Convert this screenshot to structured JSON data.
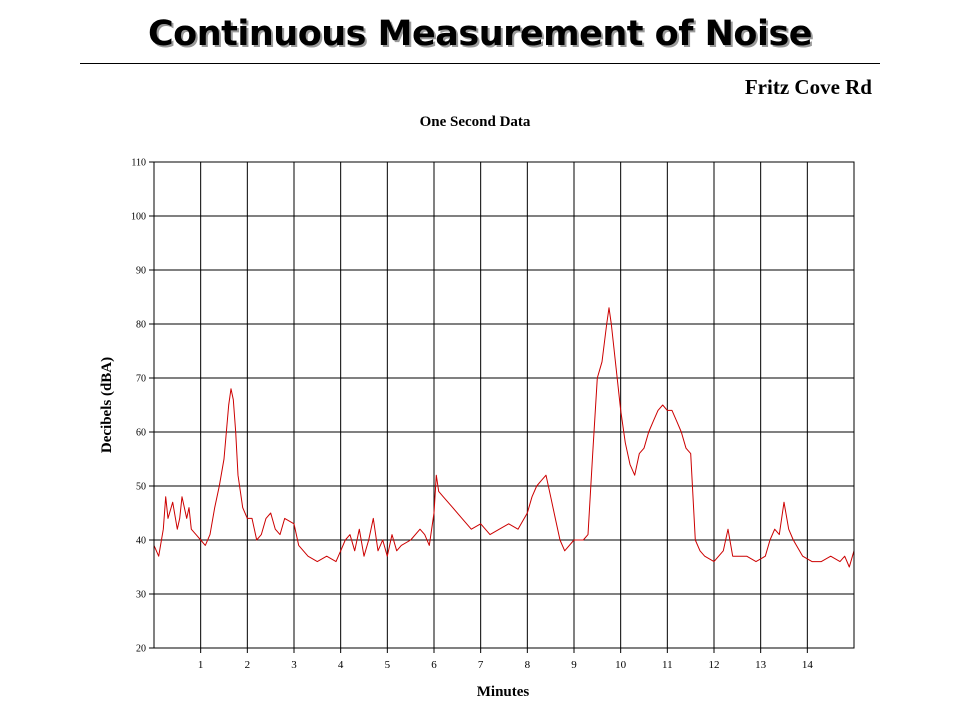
{
  "slide": {
    "title": "Continuous Measurement of Noise",
    "location": "Fritz Cove Rd"
  },
  "colors": {
    "line": "#cc0000",
    "grid": "#000000",
    "text": "#000000"
  },
  "chart_data": {
    "type": "line",
    "title": "One Second Data",
    "xlabel": "Minutes",
    "ylabel": "Decibels (dBA)",
    "xlim": [
      0,
      15
    ],
    "ylim": [
      20,
      110
    ],
    "xticks": [
      1,
      2,
      3,
      4,
      5,
      6,
      7,
      8,
      9,
      10,
      11,
      12,
      13,
      14
    ],
    "yticks": [
      20,
      30,
      40,
      50,
      60,
      70,
      80,
      90,
      100,
      110
    ],
    "grid": true,
    "legend": "none",
    "series": [
      {
        "x": [
          0,
          0.1,
          0.2,
          0.25,
          0.3,
          0.4,
          0.5,
          0.55,
          0.6,
          0.7,
          0.75,
          0.8,
          0.9,
          1.0,
          1.1,
          1.2,
          1.3,
          1.4,
          1.5,
          1.6,
          1.65,
          1.7,
          1.75,
          1.8,
          1.9,
          2.0,
          2.1,
          2.2,
          2.3,
          2.4,
          2.5,
          2.6,
          2.7,
          2.8,
          3.0,
          3.1,
          3.3,
          3.5,
          3.7,
          3.9,
          4.0,
          4.1,
          4.2,
          4.3,
          4.4,
          4.5,
          4.6,
          4.7,
          4.8,
          4.9,
          5.0,
          5.1,
          5.2,
          5.3,
          5.5,
          5.7,
          5.8,
          5.9,
          6.0,
          6.05,
          6.1,
          6.2,
          6.4,
          6.6,
          6.8,
          7.0,
          7.2,
          7.4,
          7.6,
          7.8,
          8.0,
          8.1,
          8.2,
          8.3,
          8.4,
          8.5,
          8.6,
          8.7,
          8.8,
          9.0,
          9.2,
          9.3,
          9.4,
          9.5,
          9.6,
          9.7,
          9.75,
          9.8,
          9.9,
          10.0,
          10.1,
          10.2,
          10.3,
          10.4,
          10.5,
          10.6,
          10.7,
          10.8,
          10.9,
          11.0,
          11.1,
          11.2,
          11.3,
          11.4,
          11.5,
          11.6,
          11.7,
          11.8,
          12.0,
          12.2,
          12.3,
          12.4,
          12.5,
          12.7,
          12.9,
          13.1,
          13.2,
          13.3,
          13.4,
          13.5,
          13.6,
          13.7,
          13.9,
          14.1,
          14.3,
          14.5,
          14.7,
          14.8,
          14.9,
          15.0
        ],
        "values": [
          39,
          37,
          42,
          48,
          44,
          47,
          42,
          44,
          48,
          44,
          46,
          42,
          41,
          40,
          39,
          41,
          46,
          50,
          55,
          65,
          68,
          66,
          60,
          52,
          46,
          44,
          44,
          40,
          41,
          44,
          45,
          42,
          41,
          44,
          43,
          39,
          37,
          36,
          37,
          36,
          38,
          40,
          41,
          38,
          42,
          37,
          40,
          44,
          38,
          40,
          37,
          41,
          38,
          39,
          40,
          42,
          41,
          39,
          45,
          52,
          49,
          48,
          46,
          44,
          42,
          43,
          41,
          42,
          43,
          42,
          45,
          48,
          50,
          51,
          52,
          48,
          44,
          40,
          38,
          40,
          40,
          41,
          56,
          70,
          73,
          80,
          83,
          80,
          72,
          64,
          58,
          54,
          52,
          56,
          57,
          60,
          62,
          64,
          65,
          64,
          64,
          62,
          60,
          57,
          56,
          40,
          38,
          37,
          36,
          38,
          42,
          37,
          37,
          37,
          36,
          37,
          40,
          42,
          41,
          47,
          42,
          40,
          37,
          36,
          36,
          37,
          36,
          37,
          35,
          38
        ]
      }
    ]
  }
}
